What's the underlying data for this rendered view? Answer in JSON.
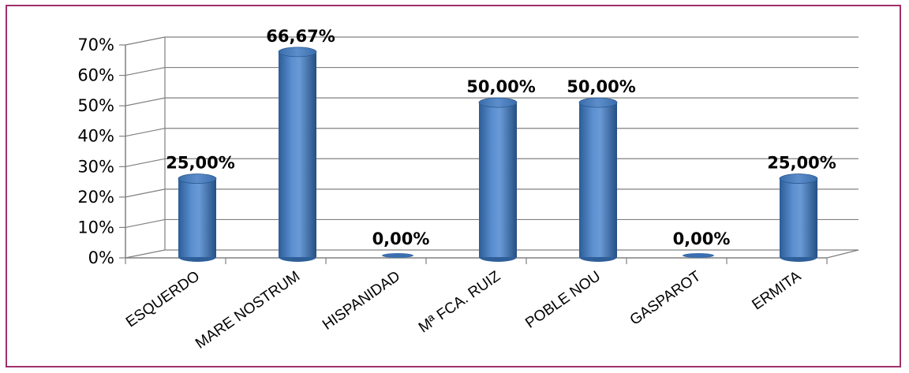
{
  "chart_data": {
    "type": "bar",
    "categories": [
      "ESQUERDO",
      "MARE NOSTRUM",
      "HISPANIDAD",
      "Mª FCA. RUIZ",
      "POBLE NOU",
      "GASPAROT",
      "ERMITA"
    ],
    "values": [
      25.0,
      66.67,
      0.0,
      50.0,
      50.0,
      0.0,
      25.0
    ],
    "data_labels": [
      "25,00%",
      "66,67%",
      "0,00%",
      "50,00%",
      "50,00%",
      "0,00%",
      "25,00%"
    ],
    "y_ticks": [
      "0%",
      "10%",
      "20%",
      "30%",
      "40%",
      "50%",
      "60%",
      "70%"
    ],
    "ylim": [
      0,
      70
    ],
    "title": "",
    "xlabel": "",
    "ylabel": "",
    "grid": true,
    "legend": "none",
    "bar_color": "#4f81bd",
    "frame_color": "#a0306a"
  }
}
